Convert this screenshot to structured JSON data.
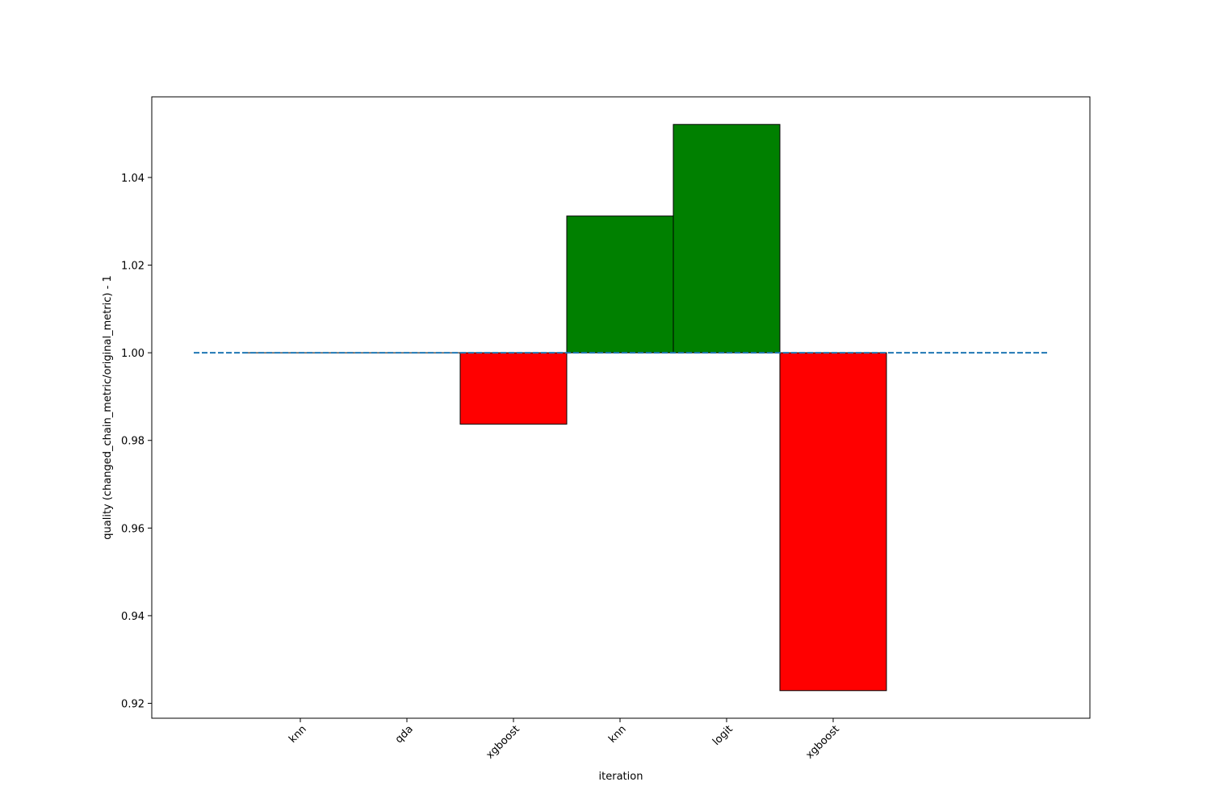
{
  "chart_data": {
    "type": "bar",
    "title": "",
    "xlabel": "iteration",
    "ylabel": "quality (changed_chain_metric/original_metric) - 1",
    "categories": [
      "knn",
      "qda",
      "xgboost",
      "knn",
      "logit",
      "xgboost"
    ],
    "values": [
      1.0,
      1.0,
      0.9837,
      1.0312,
      1.0521,
      0.9229
    ],
    "baseline": 1.0,
    "ylim": [
      0.9166,
      1.0584
    ],
    "yticks": [
      "0.92",
      "0.94",
      "0.96",
      "0.98",
      "1.00",
      "1.02",
      "1.04"
    ],
    "grid": false,
    "legend": "none",
    "reference_line": {
      "value": 1.0,
      "style": "dashed",
      "color": "#1f77b4"
    },
    "colors": {
      "positive": "#008000",
      "negative": "#ff0000",
      "edge": "#000000"
    }
  }
}
